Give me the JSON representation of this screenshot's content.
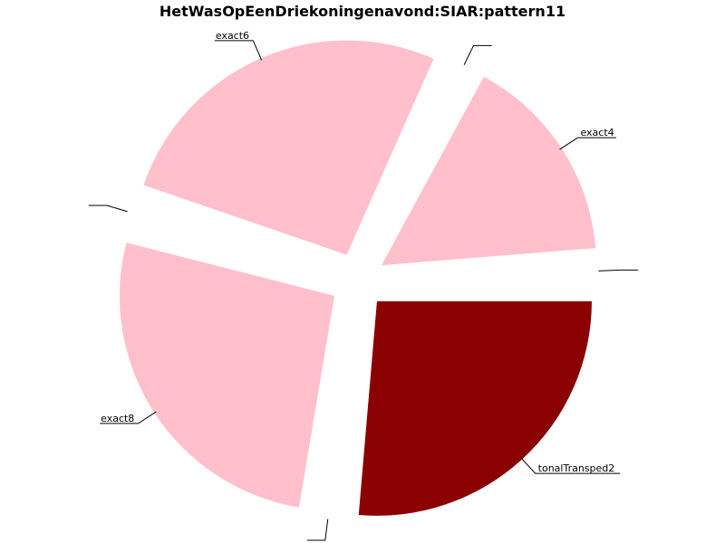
{
  "chart_data": {
    "type": "pie",
    "title": "HetWasOpEenDriekoningenavond:SIAR:pattern11",
    "slices": [
      {
        "label": "tonalTransped2",
        "value": 25,
        "color": "#8b0000"
      },
      {
        "label": "",
        "value": 0,
        "color": "#ffc0cb"
      },
      {
        "label": "exact8",
        "value": 25,
        "color": "#ffc0cb"
      },
      {
        "label": "",
        "value": 0,
        "color": "#ffc0cb"
      },
      {
        "label": "exact6",
        "value": 25,
        "color": "#ffc0cb"
      },
      {
        "label": "",
        "value": 0,
        "color": "#ffc0cb"
      },
      {
        "label": "exact4",
        "value": 15,
        "color": "#ffc0cb"
      },
      {
        "label": "",
        "value": 0,
        "color": "#ffc0cb"
      }
    ]
  }
}
